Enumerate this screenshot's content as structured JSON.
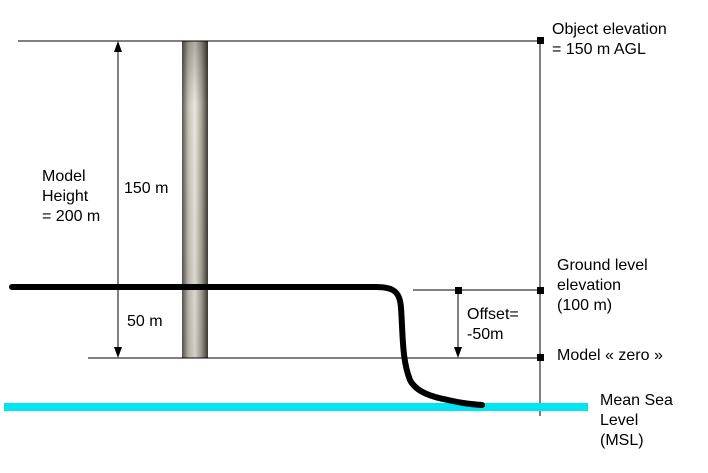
{
  "labels": {
    "object_elevation": [
      "Object elevation",
      "= 150 m AGL"
    ],
    "model_height": [
      "Model",
      "Height",
      "= 200 m"
    ],
    "upper_segment": "150 m",
    "lower_segment": "50 m",
    "ground_level": [
      "Ground level",
      "elevation",
      "(100 m)"
    ],
    "offset": [
      "Offset=",
      "-50m"
    ],
    "model_zero": "Model « zero »",
    "msl": [
      "Mean Sea",
      "Level",
      "(MSL)"
    ]
  },
  "colors": {
    "line": "#000000",
    "sea_level": "#00e5f0",
    "pole_light": "#e8e4dc",
    "pole_dark": "#4a4640"
  }
}
